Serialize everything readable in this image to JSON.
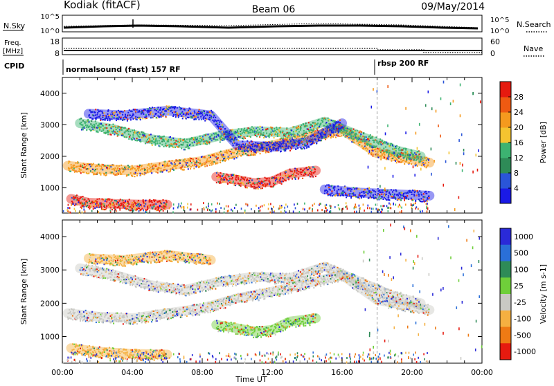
{
  "header": {
    "station": "Kodiak (fitACF)",
    "beam": "Beam 06",
    "date": "09/May/2014"
  },
  "nsky_panel": {
    "left_label": "N.Sky",
    "right_label": "N.Search",
    "left_ticks": [
      "10^5",
      "10^0"
    ],
    "right_ticks": [
      "10^5",
      "10^0"
    ]
  },
  "freq_panel": {
    "left_label_line1": "Freq.",
    "left_label_line2": "[MHz]",
    "left_ticks": [
      "18",
      "8"
    ],
    "right_label": "Nave",
    "right_ticks": [
      "60",
      "0"
    ]
  },
  "cpid_panel": {
    "label": "CPID",
    "segments": [
      {
        "name": "normalsound (fast) 157 RF",
        "start_h": 0,
        "end_h": 18
      },
      {
        "name": "rbsp 200 RF",
        "start_h": 18,
        "end_h": 24
      }
    ]
  },
  "chart_data": [
    {
      "type": "heatmap",
      "name": "power-panel",
      "ylabel": "Slant Range [km]",
      "xlabel": "",
      "xlim": [
        0,
        24
      ],
      "ylim": [
        200,
        4500
      ],
      "yticks": [
        "1000",
        "2000",
        "3000",
        "4000"
      ],
      "colorbar": {
        "label": "Power [dB]",
        "ticks": [
          "4",
          "8",
          "12",
          "16",
          "20",
          "24",
          "28"
        ],
        "colors": [
          "#1a1ae6",
          "#2a55d8",
          "#2e8b57",
          "#3cb371",
          "#f4c430",
          "#f59a1e",
          "#ee5a12",
          "#e61a0f"
        ]
      },
      "features": [
        {
          "feature": "lower band",
          "x": [
            0.5,
            1.5,
            3.0,
            4.5,
            5.0,
            6.0
          ],
          "y": [
            650,
            530,
            490,
            470,
            470,
            470
          ],
          "color": "#e61a0f"
        },
        {
          "feature": "main band",
          "x": [
            0.3,
            2,
            4,
            6,
            8,
            10,
            12,
            14,
            16,
            18,
            20,
            21
          ],
          "y": [
            1700,
            1600,
            1550,
            1700,
            1850,
            2150,
            2350,
            2600,
            2850,
            2100,
            1900,
            1800
          ],
          "color": "#f59a1e"
        },
        {
          "feature": "noon patch",
          "x": [
            8.8,
            10,
            11,
            12,
            13,
            14.5
          ],
          "y": [
            1350,
            1250,
            1150,
            1200,
            1450,
            1550
          ],
          "color": "#e61a0f"
        },
        {
          "feature": "upper band",
          "x": [
            1,
            3,
            5,
            7,
            9,
            11,
            13,
            15,
            17,
            19,
            20.5
          ],
          "y": [
            3050,
            2850,
            2550,
            2400,
            2650,
            2800,
            2750,
            3100,
            2650,
            2200,
            2000
          ],
          "color": "#3cb371"
        },
        {
          "feature": "far range",
          "x": [
            1.5,
            3.5,
            6,
            8.5,
            10,
            12,
            14,
            16
          ],
          "y": [
            3350,
            3300,
            3450,
            3300,
            2350,
            2300,
            2450,
            3050
          ],
          "color": "#1a1ae6"
        },
        {
          "feature": "near-range band",
          "x": [
            15,
            17,
            19,
            21
          ],
          "y": [
            950,
            850,
            800,
            750
          ],
          "color": "#1a1ae6"
        }
      ]
    },
    {
      "type": "heatmap",
      "name": "velocity-panel",
      "ylabel": "Slant Range [km]",
      "xlabel": "Time UT",
      "xlim": [
        0,
        24
      ],
      "ylim": [
        200,
        4500
      ],
      "yticks": [
        "1000",
        "2000",
        "3000",
        "4000"
      ],
      "xticks": [
        "00:00",
        "04:00",
        "08:00",
        "12:00",
        "16:00",
        "20:00",
        "00:00"
      ],
      "colorbar": {
        "label": "Velocity [m s-1]",
        "ticks": [
          "1000",
          "500",
          "100",
          "25",
          "-25",
          "-100",
          "-500",
          "-1000"
        ],
        "colors": [
          "#2a2ad8",
          "#2a6fd8",
          "#2e8b57",
          "#6fcf3a",
          "#c9c9c4",
          "#f5b041",
          "#ee7a14",
          "#e61a0f"
        ]
      },
      "features": [
        {
          "feature": "lower band",
          "x": [
            0.5,
            2,
            4,
            6
          ],
          "y": [
            650,
            550,
            480,
            460
          ],
          "color": "#f5b041"
        },
        {
          "feature": "main band",
          "x": [
            0.3,
            2,
            4,
            6,
            8,
            10,
            12,
            14,
            16,
            18,
            20,
            21
          ],
          "y": [
            1700,
            1600,
            1550,
            1700,
            1850,
            2150,
            2350,
            2600,
            2850,
            2100,
            1900,
            1800
          ],
          "color": "#c9c9c4"
        },
        {
          "feature": "noon patch",
          "x": [
            8.8,
            10,
            11,
            12,
            13,
            14.5
          ],
          "y": [
            1350,
            1250,
            1150,
            1200,
            1450,
            1550
          ],
          "color": "#6fcf3a"
        },
        {
          "feature": "upper band",
          "x": [
            1,
            3,
            5,
            7,
            9,
            11,
            13,
            15,
            17,
            19,
            20.5
          ],
          "y": [
            3050,
            2850,
            2550,
            2400,
            2650,
            2800,
            2750,
            3100,
            2650,
            2200,
            2000
          ],
          "color": "#c9c9c4"
        },
        {
          "feature": "far range",
          "x": [
            1.5,
            3.5,
            6,
            8.5
          ],
          "y": [
            3350,
            3300,
            3450,
            3300
          ],
          "color": "#f5b041"
        }
      ]
    }
  ]
}
